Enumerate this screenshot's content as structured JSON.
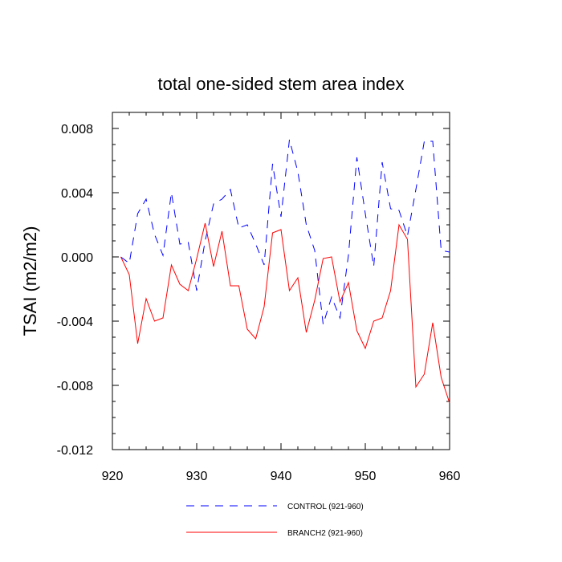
{
  "chart_data": {
    "type": "line",
    "title": "total one-sided stem area index",
    "xlabel": "",
    "ylabel": "TSAI  (m2/m2)",
    "xlim": [
      920,
      960
    ],
    "ylim": [
      -0.012,
      0.009
    ],
    "xticks": [
      920,
      930,
      940,
      950,
      960
    ],
    "xtick_labels": [
      "920",
      "930",
      "940",
      "950",
      "960"
    ],
    "yticks": [
      -0.012,
      -0.008,
      -0.004,
      0.0,
      0.004,
      0.008
    ],
    "ytick_labels": [
      "-0.012",
      "-0.008",
      "-0.004",
      "0.000",
      "0.004",
      "0.008"
    ],
    "legend_position": "bottom-center",
    "x": [
      921,
      922,
      923,
      924,
      925,
      926,
      927,
      928,
      929,
      930,
      931,
      932,
      933,
      934,
      935,
      936,
      937,
      938,
      939,
      940,
      941,
      942,
      943,
      944,
      945,
      946,
      947,
      948,
      949,
      950,
      951,
      952,
      953,
      954,
      955,
      956,
      957,
      958,
      959,
      960
    ],
    "series": [
      {
        "name": "CONTROL (921-960)",
        "color": "#0000ff",
        "dash": "dashed",
        "values": [
          0.0,
          -0.0004,
          0.0027,
          0.0036,
          0.0014,
          0.0001,
          0.004,
          0.0008,
          0.0009,
          -0.0021,
          0.001,
          0.0033,
          0.0036,
          0.0042,
          0.0018,
          0.002,
          0.0008,
          -0.0005,
          0.0058,
          0.0025,
          0.0073,
          0.0053,
          0.002,
          0.0004,
          -0.0042,
          -0.0025,
          -0.0038,
          0.0001,
          0.0062,
          0.0027,
          -0.0006,
          0.0059,
          0.003,
          0.0029,
          0.0013,
          0.0042,
          0.0072,
          0.0072,
          0.0004,
          0.0003
        ]
      },
      {
        "name": "BRANCH2 (921-960)",
        "color": "#ff0000",
        "dash": "solid",
        "values": [
          0.0,
          -0.0011,
          -0.0054,
          -0.0026,
          -0.004,
          -0.0038,
          -0.0005,
          -0.0017,
          -0.0021,
          -0.0001,
          0.0021,
          -0.0006,
          0.0016,
          -0.0018,
          -0.0018,
          -0.0045,
          -0.0051,
          -0.0031,
          0.0015,
          0.0017,
          -0.0021,
          -0.0013,
          -0.0047,
          -0.0027,
          -0.0001,
          0.0,
          -0.0028,
          -0.0016,
          -0.0046,
          -0.0057,
          -0.004,
          -0.0038,
          -0.0021,
          0.002,
          0.0011,
          -0.0081,
          -0.0073,
          -0.0041,
          -0.0075,
          -0.0091
        ]
      }
    ]
  }
}
